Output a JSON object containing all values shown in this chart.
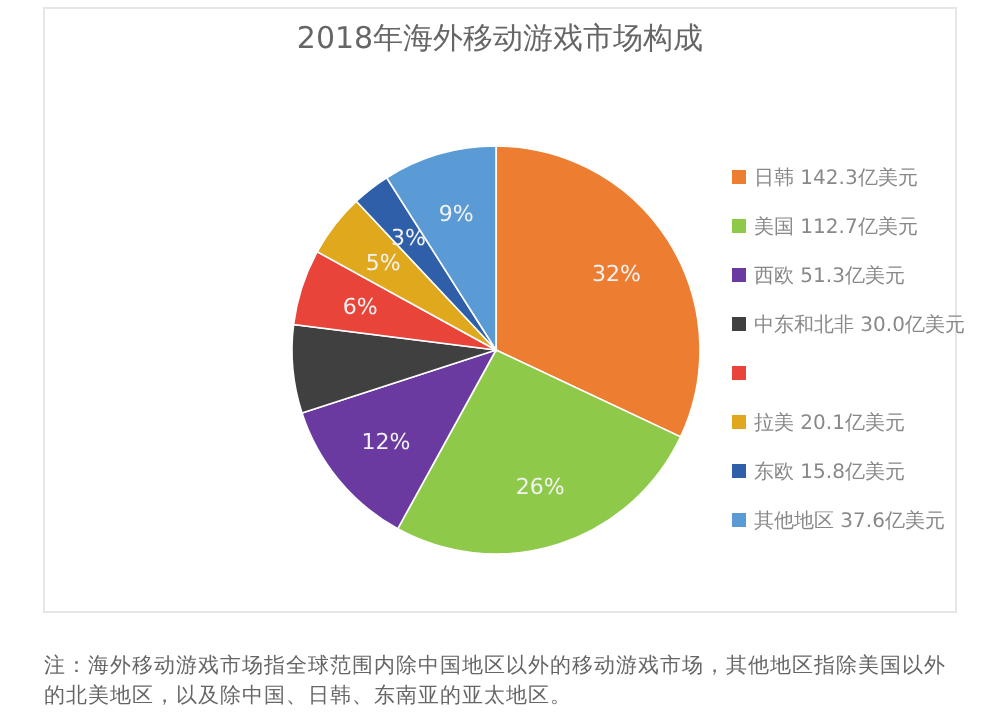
{
  "chart_data": {
    "type": "pie",
    "title": "2018年海外移动游戏市场构成",
    "categories": [
      "日韩 142.3亿美元",
      "美国 112.7亿美元",
      "西欧 51.3亿美元",
      "中东和北非 30.0亿美元",
      null,
      "拉美 20.1亿美元",
      "东欧 15.8亿美元",
      "其他地区 37.6亿美元"
    ],
    "values": [
      32,
      26,
      12,
      7,
      6,
      5,
      3,
      9
    ],
    "value_labels": [
      "32%",
      "26%",
      "12%",
      null,
      "6%",
      "5%",
      "3%",
      "9%"
    ],
    "colors": [
      "#ed7d31",
      "#8fc94a",
      "#6a3aa0",
      "#404040",
      "#e8443a",
      "#e0a81c",
      "#2e5fa8",
      "#5b9bd5"
    ],
    "legend": "right",
    "annotations": [
      "注：海外移动游戏市场指全球范围内除中国地区以外的移动游戏市场，其他地区指除美国以外的北美地区，以及除中国、日韩、东南亚的亚太地区。"
    ]
  }
}
